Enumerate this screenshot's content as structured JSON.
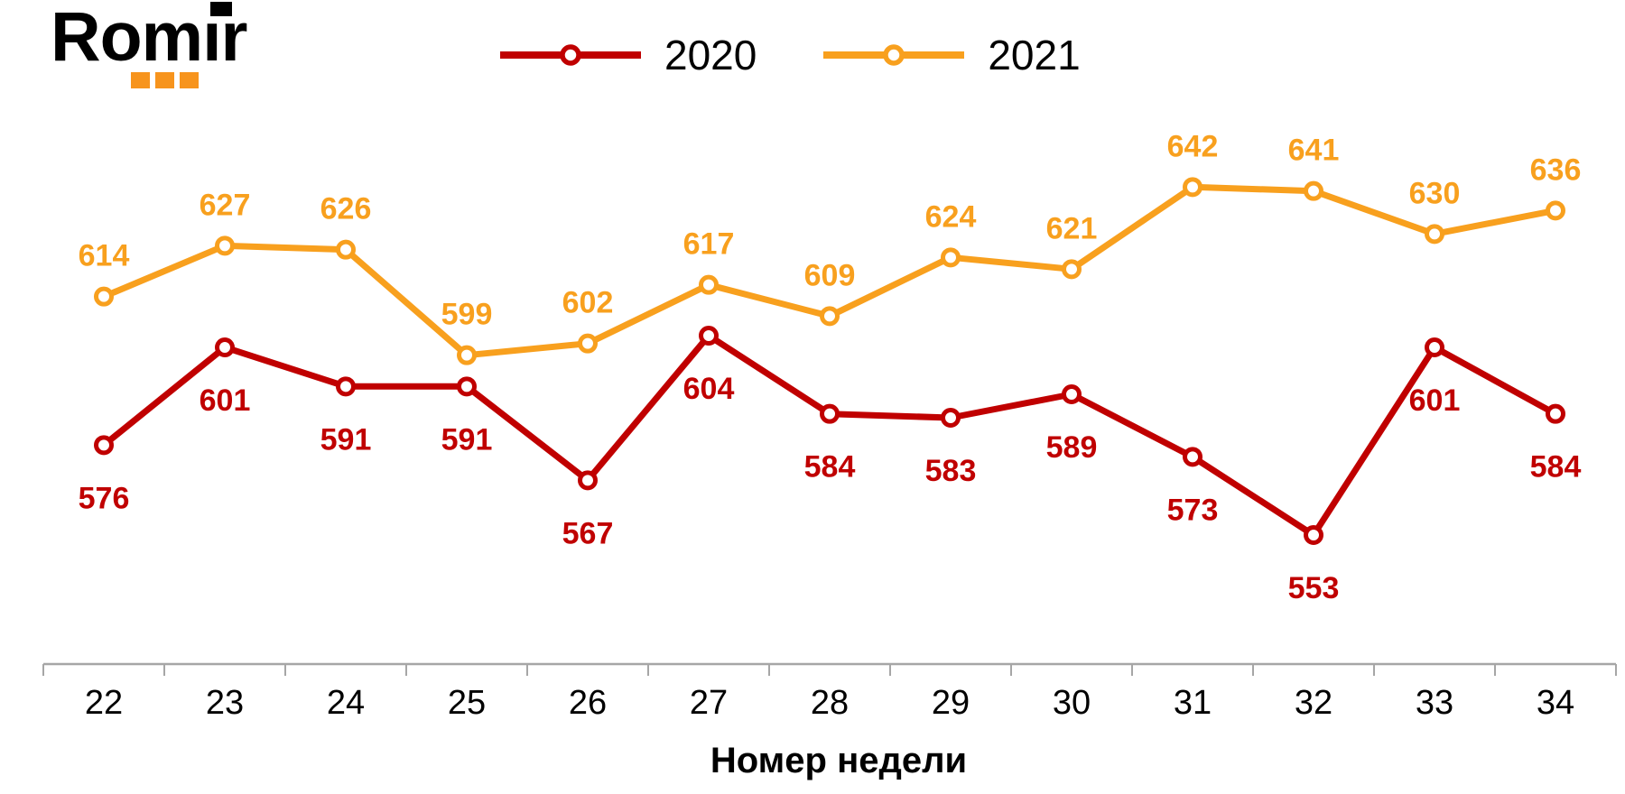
{
  "logo": {
    "text": "Romir",
    "text_color": "#000000",
    "accent_color": "#F7941D"
  },
  "chart_data": {
    "type": "line",
    "x": [
      22,
      23,
      24,
      25,
      26,
      27,
      28,
      29,
      30,
      31,
      32,
      33,
      34
    ],
    "xlabel": "Номер недели",
    "ylabel": "",
    "title": "",
    "series": [
      {
        "name": "2020",
        "color": "#C00000",
        "values": [
          576,
          601,
          591,
          591,
          567,
          604,
          584,
          583,
          589,
          573,
          553,
          601,
          584
        ],
        "label_position": "below"
      },
      {
        "name": "2021",
        "color": "#F8A01E",
        "values": [
          614,
          627,
          626,
          599,
          602,
          617,
          609,
          624,
          621,
          642,
          641,
          630,
          636
        ],
        "label_position": "above"
      }
    ],
    "ylim": [
      540,
      665
    ],
    "grid": false,
    "data_labels": true,
    "markers": "open-circle",
    "legend_position": "top-center",
    "axis_color": "#A6A6A6",
    "tick_label_color": "#000000"
  }
}
